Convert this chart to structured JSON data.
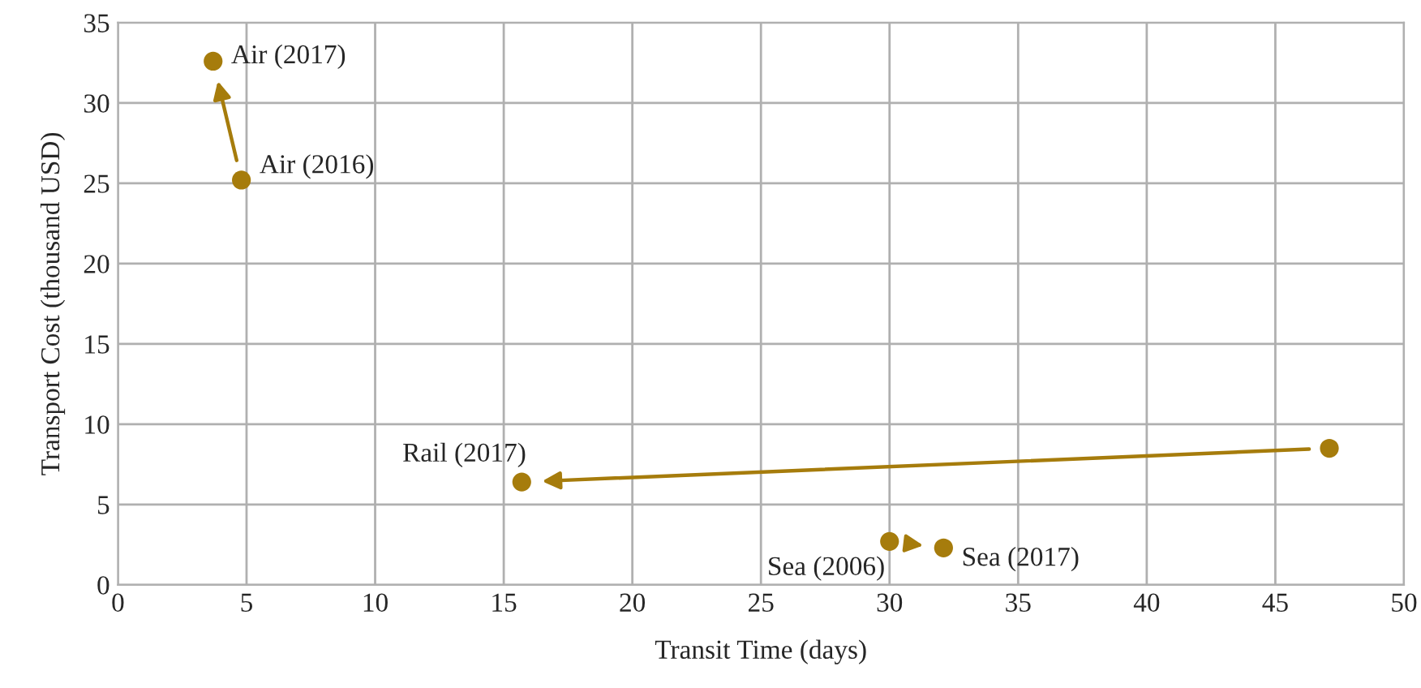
{
  "chart_data": {
    "type": "scatter",
    "xlabel": "Transit Time (days)",
    "ylabel": "Transport Cost (thousand USD)",
    "series": [
      {
        "color": "#a67c0c",
        "x": [
          4.8,
          3.7
        ],
        "values": [
          25.2,
          32.6
        ]
      },
      {
        "color": "#a67c0c",
        "x": [
          47.1,
          15.7
        ],
        "values": [
          8.5,
          6.4
        ]
      },
      {
        "color": "#a67c0c",
        "x": [
          30.0,
          32.1
        ],
        "values": [
          2.7,
          2.3
        ]
      }
    ],
    "annotations": [
      {
        "text": "Air (2017)",
        "x": 3.7,
        "y": 32.6
      },
      {
        "text": "Air (2016)",
        "x": 4.8,
        "y": 25.2
      },
      {
        "text": "Rail (2017)",
        "x": 15.7,
        "y": 6.4
      },
      {
        "text": "Sea (2006)",
        "x": 30.0,
        "y": 2.7
      },
      {
        "text": "Sea (2017)",
        "x": 32.1,
        "y": 2.3
      }
    ],
    "xlim": [
      0,
      50
    ],
    "xticks": [
      0,
      5,
      10,
      15,
      20,
      25,
      30,
      35,
      40,
      45,
      50
    ],
    "ylim": [
      0,
      35
    ],
    "yticks": [
      0,
      5,
      10,
      15,
      20,
      25,
      30,
      35
    ],
    "grid": true,
    "marker": "circle"
  }
}
